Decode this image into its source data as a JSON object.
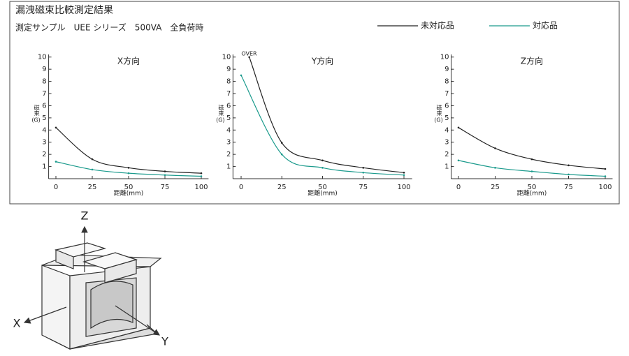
{
  "header": {
    "title": "漏洩磁束比較測定結果",
    "subtitle": "測定サンプル　UEE シリーズ　500VA　全負荷時"
  },
  "chart_data": [
    {
      "type": "line",
      "title": "X方向",
      "xlabel": "距離(mm)",
      "ylabel": "磁束",
      "yunit": "(G)",
      "xlim": [
        -5,
        105
      ],
      "ylim": [
        0,
        10.1
      ],
      "xticks": [
        0,
        25,
        50,
        75,
        100
      ],
      "yticks": [
        1,
        2,
        3,
        4,
        5,
        6,
        7,
        8,
        9,
        10
      ],
      "series": [
        {
          "name": "未対応品",
          "color": "#222222",
          "x": [
            0,
            25,
            50,
            75,
            100
          ],
          "values": [
            4.2,
            1.6,
            0.9,
            0.6,
            0.45
          ]
        },
        {
          "name": "対応品",
          "color": "#1a9a8c",
          "x": [
            0,
            25,
            50,
            75,
            100
          ],
          "values": [
            1.4,
            0.75,
            0.45,
            0.3,
            0.2
          ]
        }
      ]
    },
    {
      "type": "line",
      "title": "Y方向",
      "xlabel": "距離(mm)",
      "ylabel": "磁束",
      "yunit": "(G)",
      "annotation": "OVER",
      "xlim": [
        -5,
        105
      ],
      "ylim": [
        0,
        10.1
      ],
      "xticks": [
        0,
        25,
        50,
        75,
        100
      ],
      "yticks": [
        1,
        2,
        3,
        4,
        5,
        6,
        7,
        8,
        9,
        10
      ],
      "series": [
        {
          "name": "未対応品",
          "color": "#222222",
          "x": [
            5,
            25,
            50,
            75,
            100
          ],
          "values": [
            10,
            2.95,
            1.5,
            0.9,
            0.5
          ]
        },
        {
          "name": "対応品",
          "color": "#1a9a8c",
          "x": [
            0,
            25,
            50,
            75,
            100
          ],
          "values": [
            8.5,
            2.0,
            0.9,
            0.5,
            0.3
          ]
        }
      ]
    },
    {
      "type": "line",
      "title": "Z方向",
      "xlabel": "距離(mm)",
      "ylabel": "磁束",
      "yunit": "(G)",
      "xlim": [
        -5,
        105
      ],
      "ylim": [
        0,
        10.1
      ],
      "xticks": [
        0,
        25,
        50,
        75,
        100
      ],
      "yticks": [
        1,
        2,
        3,
        4,
        5,
        6,
        7,
        8,
        9,
        10
      ],
      "series": [
        {
          "name": "未対応品",
          "color": "#222222",
          "x": [
            0,
            25,
            50,
            75,
            100
          ],
          "values": [
            4.2,
            2.5,
            1.6,
            1.1,
            0.8
          ]
        },
        {
          "name": "対応品",
          "color": "#1a9a8c",
          "x": [
            0,
            25,
            50,
            75,
            100
          ],
          "values": [
            1.5,
            0.9,
            0.6,
            0.35,
            0.2
          ]
        }
      ]
    }
  ],
  "diagram": {
    "labels": [
      "Z",
      "X",
      "Y"
    ]
  }
}
